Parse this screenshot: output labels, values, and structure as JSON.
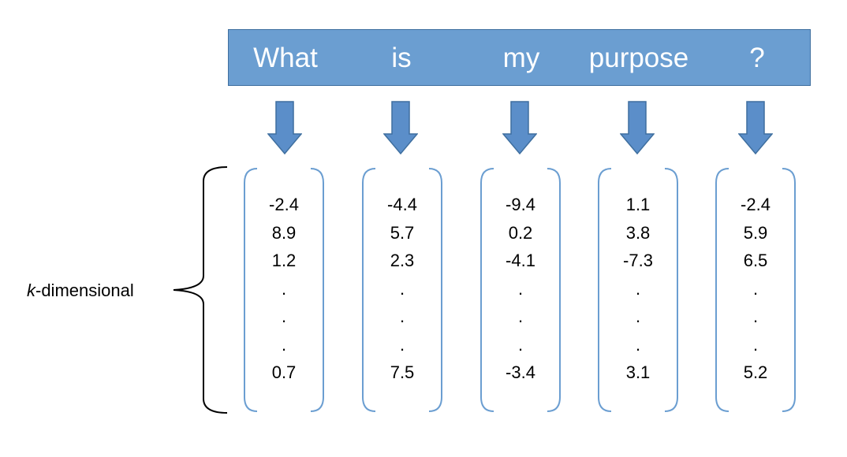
{
  "tokens": [
    "What",
    "is",
    "my",
    "purpose",
    "?"
  ],
  "dimension_label": {
    "prefix": "k",
    "suffix": "-dimensional"
  },
  "vectors": [
    [
      "-2.4",
      "8.9",
      "1.2",
      ".",
      ".",
      ".",
      "0.7"
    ],
    [
      "-4.4",
      "5.7",
      "2.3",
      ".",
      ".",
      ".",
      "7.5"
    ],
    [
      "-9.4",
      "0.2",
      "-4.1",
      ".",
      ".",
      ".",
      "-3.4"
    ],
    [
      "1.1",
      "3.8",
      "-7.3",
      ".",
      ".",
      ".",
      "3.1"
    ],
    [
      "-2.4",
      "5.9",
      "6.5",
      ".",
      ".",
      ".",
      "5.2"
    ]
  ],
  "colors": {
    "bar_fill": "#6b9ed1",
    "bar_border": "#3f6f9f",
    "arrow_fill": "#5b8ec9",
    "bracket_stroke": "#6b9ed1"
  }
}
